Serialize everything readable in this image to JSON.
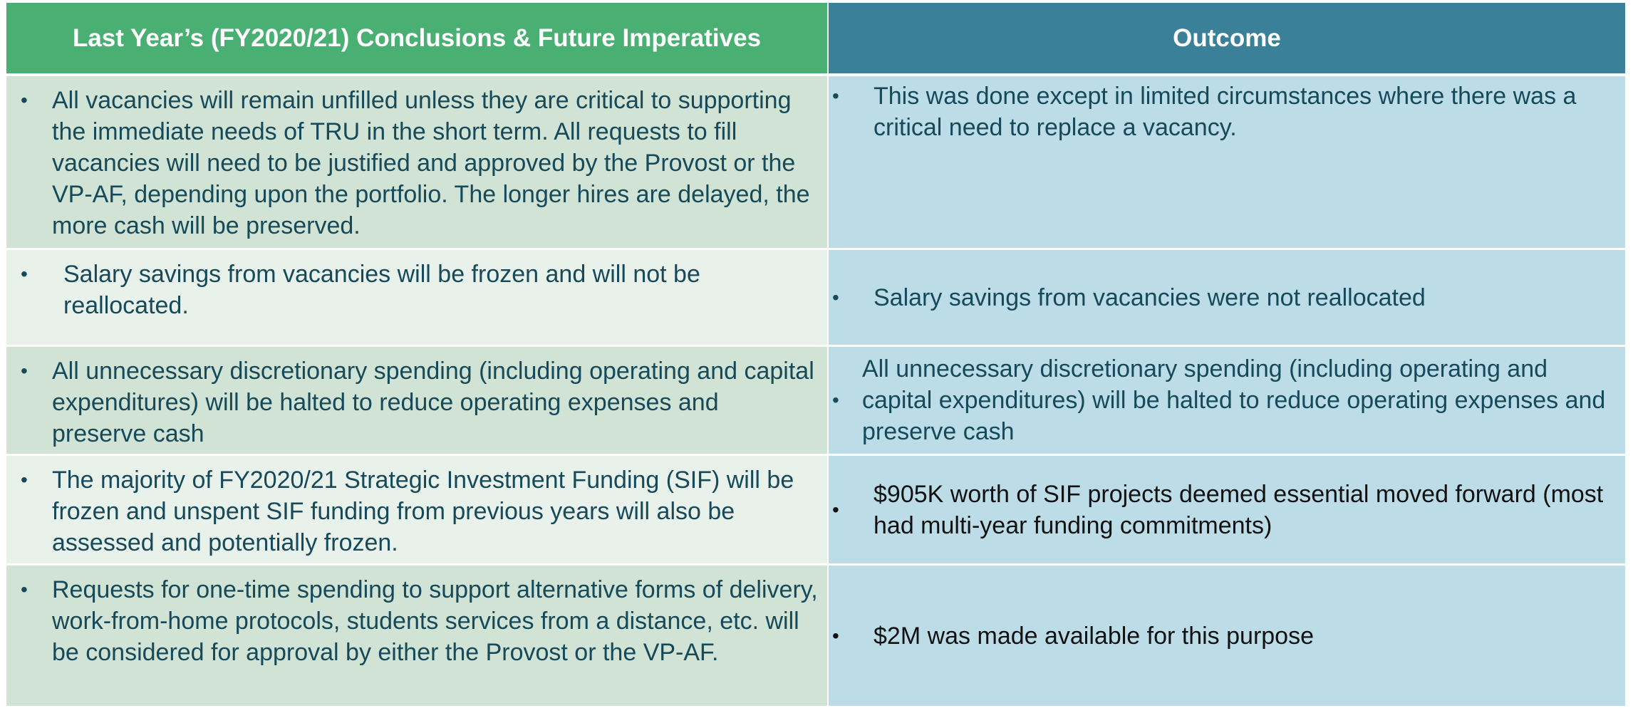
{
  "header": {
    "columns": [
      "Last Year’s (FY2020/21) Conclusions & Future Imperatives",
      "Outcome"
    ]
  },
  "table": {
    "rows": [
      [
        "All vacancies will remain unfilled unless they are critical to supporting the immediate needs of TRU in the short term. All requests to fill vacancies will need to be justified and approved by the Provost or the VP-AF, depending upon the portfolio. The longer hires are delayed, the more cash will be preserved.",
        "This was done except in limited circumstances where there was a critical need to replace a vacancy."
      ],
      [
        "Salary savings from vacancies will be frozen and will not be reallocated.",
        "Salary savings from vacancies were not reallocated"
      ],
      [
        "All unnecessary discretionary spending (including operating and capital expenditures) will be halted to reduce operating expenses and preserve cash",
        "All unnecessary discretionary spending (including operating and capital expenditures) will be halted to reduce operating expenses and preserve cash"
      ],
      [
        "The majority of FY2020/21 Strategic Investment Funding (SIF) will be frozen and unspent SIF funding from previous years will also be assessed and potentially frozen.",
        "$905K worth of SIF projects deemed essential moved forward (most had multi-year funding commitments)"
      ],
      [
        "Requests for one-time spending to support alternative forms of delivery, work-from-home protocols, students services from a distance, etc. will be considered for approval by either the Provost or the VP-AF.",
        "$2M was made available for this purpose"
      ]
    ]
  }
}
